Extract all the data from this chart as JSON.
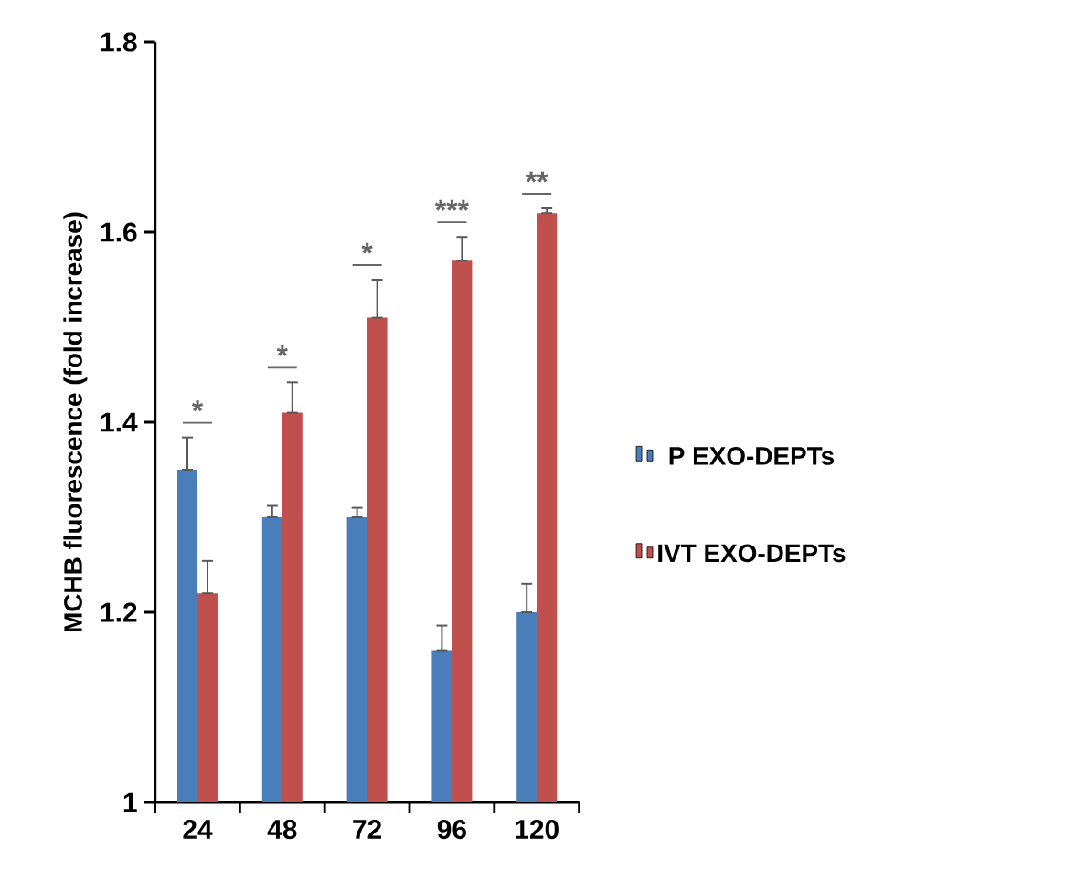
{
  "chart_data": {
    "type": "bar",
    "ylabel": "MCHB fluorescence (fold increase)",
    "categories": [
      "24",
      "48",
      "72",
      "96",
      "120"
    ],
    "series": [
      {
        "name": "P EXO-DEPTs",
        "color": "#4a7ebb",
        "values": [
          1.35,
          1.3,
          1.3,
          1.16,
          1.2
        ],
        "errors": [
          [
            1.35,
            1.384
          ],
          [
            1.3,
            1.312
          ],
          [
            1.3,
            1.31
          ],
          [
            1.16,
            1.186
          ],
          [
            1.2,
            1.23
          ]
        ]
      },
      {
        "name": "IVT EXO-DEPTs",
        "color": "#c0504d",
        "values": [
          1.22,
          1.41,
          1.51,
          1.57,
          1.62
        ],
        "errors": [
          [
            1.22,
            1.254
          ],
          [
            1.41,
            1.442
          ],
          [
            1.51,
            1.55
          ],
          [
            1.57,
            1.595
          ],
          [
            1.62,
            1.625
          ]
        ]
      }
    ],
    "ylim": [
      1,
      1.8
    ],
    "yticks": [
      1,
      1.2,
      1.4,
      1.6,
      1.8
    ],
    "grid": false,
    "legend": "right",
    "annotations": [
      "*",
      "*",
      "*",
      "***",
      "**"
    ]
  }
}
